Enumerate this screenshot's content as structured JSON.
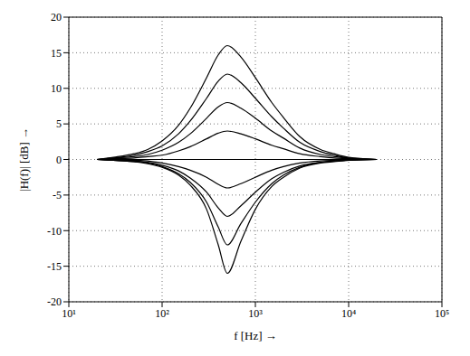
{
  "chart_data": {
    "type": "line",
    "x_label": "f [Hz] →",
    "y_label": "|H(f)| [dB] →",
    "log": "x",
    "grid": true,
    "xlim": [
      10,
      100000
    ],
    "xticks": [
      {
        "value": 10,
        "label": "10¹"
      },
      {
        "value": 100,
        "label": "10²"
      },
      {
        "value": 1000,
        "label": "10³"
      },
      {
        "value": 10000,
        "label": "10⁴"
      },
      {
        "value": 100000,
        "label": "10⁵"
      }
    ],
    "ylim": [
      -20,
      20
    ],
    "yticks": [
      -20,
      -15,
      -10,
      -5,
      0,
      5,
      10,
      15,
      20
    ],
    "x": [
      20,
      30,
      50,
      70,
      100,
      150,
      200,
      300,
      400,
      500,
      700,
      1000,
      1500,
      2000,
      3000,
      5000,
      7000,
      10000,
      20000
    ],
    "series": [
      {
        "color": "#000000",
        "values": [
          0,
          0.3,
          0.8,
          1.4,
          2.6,
          4.8,
          7.2,
          11.5,
          14.7,
          16,
          14.4,
          11.5,
          8,
          5.9,
          3.2,
          1.4,
          0.8,
          0.3,
          0
        ]
      },
      {
        "color": "#000000",
        "values": [
          0,
          0.2,
          0.6,
          1.1,
          1.9,
          3.6,
          5.4,
          8.6,
          11,
          12,
          10.8,
          8.6,
          6,
          4.4,
          2.4,
          1.1,
          0.6,
          0.2,
          0
        ]
      },
      {
        "color": "#000000",
        "values": [
          0,
          0.2,
          0.4,
          0.7,
          1.3,
          2.4,
          3.6,
          5.8,
          7.4,
          8,
          7.2,
          5.8,
          4,
          3,
          1.6,
          0.7,
          0.4,
          0.2,
          0
        ]
      },
      {
        "color": "#000000",
        "values": [
          0,
          0.1,
          0.2,
          0.4,
          0.6,
          1.2,
          1.8,
          2.9,
          3.7,
          4,
          3.6,
          2.9,
          2,
          1.5,
          0.8,
          0.4,
          0.2,
          0.1,
          0
        ]
      },
      {
        "color": "#000000",
        "values": [
          0,
          0,
          0,
          0,
          0,
          0,
          0,
          0,
          0,
          0,
          0,
          0,
          0,
          0,
          0,
          0,
          0,
          0,
          0
        ]
      },
      {
        "color": "#000000",
        "values": [
          0,
          -0.1,
          -0.1,
          -0.2,
          -0.5,
          -1,
          -1.5,
          -2.5,
          -3.5,
          -4,
          -3.4,
          -2.5,
          -1.5,
          -1,
          -0.5,
          -0.2,
          -0.1,
          0,
          0
        ]
      },
      {
        "color": "#000000",
        "values": [
          0,
          -0.1,
          -0.2,
          -0.4,
          -0.8,
          -1.6,
          -2.6,
          -4.6,
          -6.8,
          -8,
          -6.5,
          -4.6,
          -2.7,
          -1.8,
          -0.9,
          -0.4,
          -0.2,
          -0.1,
          0
        ]
      },
      {
        "color": "#000000",
        "values": [
          0,
          -0.1,
          -0.3,
          -0.5,
          -1,
          -2,
          -3.2,
          -6,
          -9.5,
          -12,
          -9,
          -6,
          -3.4,
          -2.2,
          -1.1,
          -0.4,
          -0.2,
          -0.1,
          0
        ]
      },
      {
        "color": "#000000",
        "values": [
          0,
          -0.1,
          -0.3,
          -0.6,
          -1.1,
          -2.2,
          -3.6,
          -7,
          -12,
          -16,
          -11.5,
          -7,
          -3.8,
          -2.5,
          -1.2,
          -0.5,
          -0.3,
          -0.1,
          0
        ]
      }
    ]
  }
}
